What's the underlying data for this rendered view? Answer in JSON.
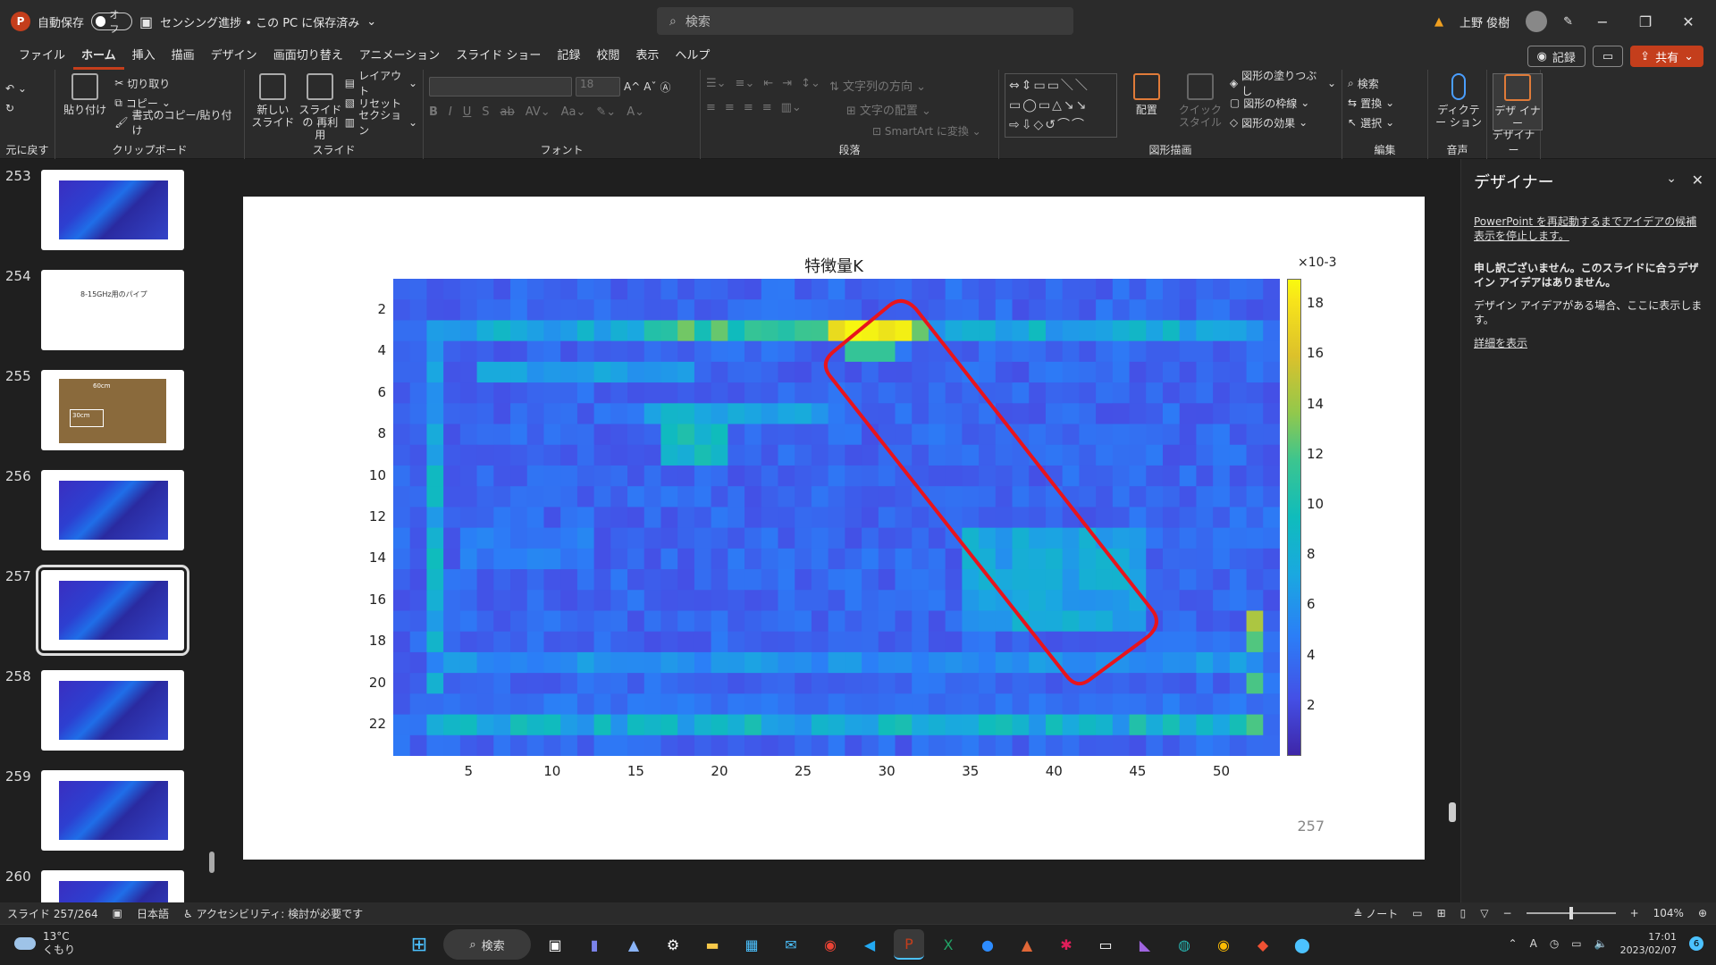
{
  "titlebar": {
    "app_icon": "P",
    "autosave_label": "自動保存",
    "autosave_state": "オフ",
    "doc_title": "センシング進捗 • この PC に保存済み",
    "search_placeholder": "検索",
    "user_name": "上野 俊樹"
  },
  "menu": {
    "items": [
      "ファイル",
      "ホーム",
      "挿入",
      "描画",
      "デザイン",
      "画面切り替え",
      "アニメーション",
      "スライド ショー",
      "記録",
      "校閲",
      "表示",
      "ヘルプ"
    ],
    "active": "ホーム",
    "record_label": "記録",
    "share_label": "共有"
  },
  "ribbon": {
    "undo_group": "元に戻す",
    "clipboard": {
      "paste": "貼り付け",
      "cut": "切り取り",
      "copy": "コピー",
      "format_painter": "書式のコピー/貼り付け",
      "label": "クリップボード"
    },
    "slides": {
      "new_slide": "新しい スライド",
      "reuse": "スライドの 再利用",
      "layout": "レイアウト",
      "reset": "リセット",
      "section": "セクション",
      "label": "スライド"
    },
    "font": {
      "size": "18",
      "label": "フォント"
    },
    "paragraph": {
      "text_direction": "文字列の方向",
      "align_text": "文字の配置",
      "smartart": "SmartArt に変換",
      "label": "段落"
    },
    "drawing": {
      "arrange": "配置",
      "quick_styles": "クイック スタイル",
      "shape_fill": "図形の塗りつぶし",
      "shape_outline": "図形の枠線",
      "shape_effects": "図形の効果",
      "label": "図形描画"
    },
    "editing": {
      "find": "検索",
      "replace": "置換",
      "select": "選択",
      "label": "編集"
    },
    "voice": {
      "dictate": "ディクテー ション",
      "label": "音声"
    },
    "designer": {
      "btn": "デザ イナー",
      "label": "デザイナー"
    }
  },
  "thumbnails": [
    {
      "num": "253",
      "kind": "heatmap"
    },
    {
      "num": "254",
      "kind": "text",
      "text": "8-15GHz用のパイプ"
    },
    {
      "num": "255",
      "kind": "photo",
      "text_a": "60cm",
      "text_b": "30cm"
    },
    {
      "num": "256",
      "kind": "heatmap"
    },
    {
      "num": "257",
      "kind": "heatmap",
      "selected": true
    },
    {
      "num": "258",
      "kind": "heatmap"
    },
    {
      "num": "259",
      "kind": "heatmap"
    },
    {
      "num": "260",
      "kind": "heatmap"
    }
  ],
  "slide": {
    "number": "257",
    "chart_data": {
      "type": "heatmap",
      "title": "特徴量K",
      "x_ticks": [
        "5",
        "10",
        "15",
        "20",
        "25",
        "30",
        "35",
        "40",
        "45",
        "50"
      ],
      "y_ticks": [
        "2",
        "4",
        "6",
        "8",
        "10",
        "12",
        "14",
        "16",
        "18",
        "20",
        "22"
      ],
      "xlim": [
        0.5,
        53.5
      ],
      "ylim": [
        0.5,
        23.5
      ],
      "colorbar_ticks": [
        "18",
        "16",
        "14",
        "12",
        "10",
        "8",
        "6",
        "4",
        "2"
      ],
      "colorbar_exponent": "×10-3",
      "clim": [
        0,
        19
      ],
      "annotation": "red rounded rectangle (diagonal)"
    }
  },
  "designer": {
    "title": "デザイナー",
    "restart_link": "PowerPoint を再起動するまでアイデアの候補表示を停止します。",
    "sorry": "申し訳ございません。このスライドに合うデザイン アイデアはありません。",
    "info": "デザイン アイデアがある場合、ここに表示します。",
    "details_link": "詳細を表示"
  },
  "status": {
    "slide_count": "スライド 257/264",
    "language": "日本語",
    "accessibility": "アクセシビリティ: 検討が必要です",
    "notes": "ノート",
    "zoom": "104%"
  },
  "taskbar": {
    "temp": "13°C",
    "weather": "くもり",
    "search": "検索",
    "time": "17:01",
    "date": "2023/02/07",
    "notif_count": "6",
    "ime": "A"
  },
  "colors": {
    "accent": "#c43e1c",
    "annotation": "#e8141c"
  }
}
